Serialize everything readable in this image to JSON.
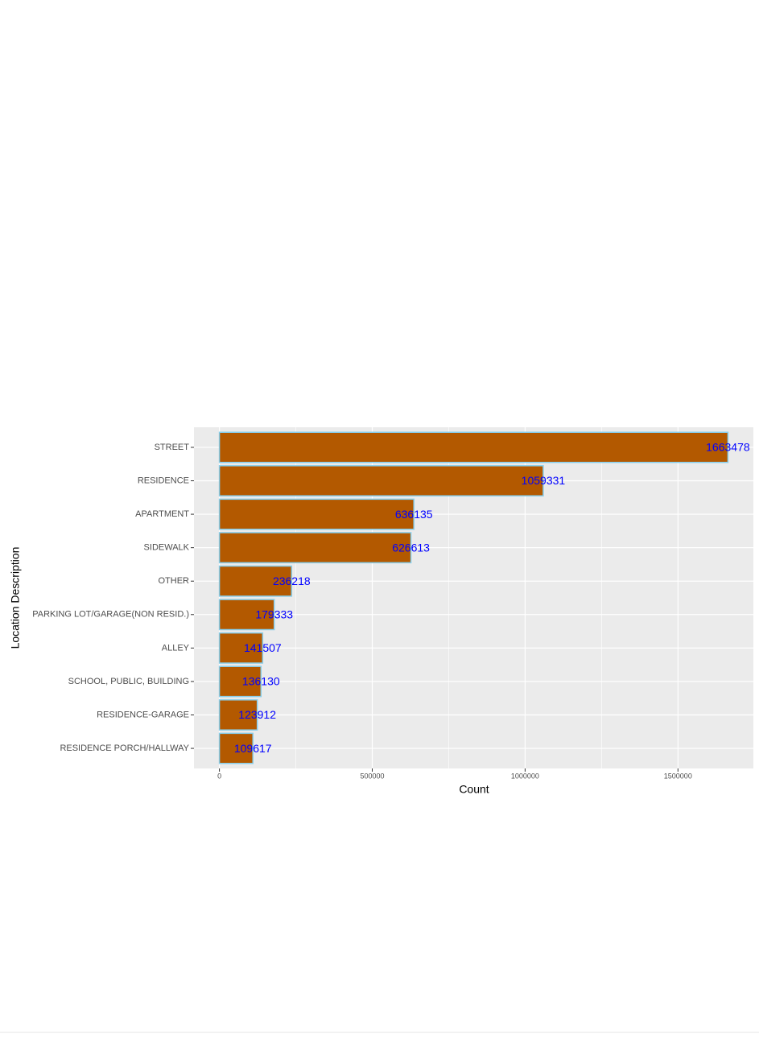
{
  "chart_data": {
    "type": "bar",
    "orientation": "horizontal",
    "x_label": "Count",
    "y_label": "Location Description",
    "categories": [
      "STREET",
      "RESIDENCE",
      "APARTMENT",
      "SIDEWALK",
      "OTHER",
      "PARKING LOT/GARAGE(NON RESID.)",
      "ALLEY",
      "SCHOOL, PUBLIC, BUILDING",
      "RESIDENCE-GARAGE",
      "RESIDENCE PORCH/HALLWAY"
    ],
    "values": [
      1663478,
      1059331,
      636135,
      626613,
      236218,
      179333,
      141507,
      136130,
      123912,
      109617
    ],
    "color": "#b35900",
    "edge_color": "#87ceeb",
    "label_color": "#0000ff",
    "xlim": [
      -83174,
      1746652
    ],
    "xticks": [
      0,
      500000,
      1000000,
      1500000
    ],
    "minor_xticks": [
      250000,
      750000,
      1250000
    ],
    "grid": true
  }
}
